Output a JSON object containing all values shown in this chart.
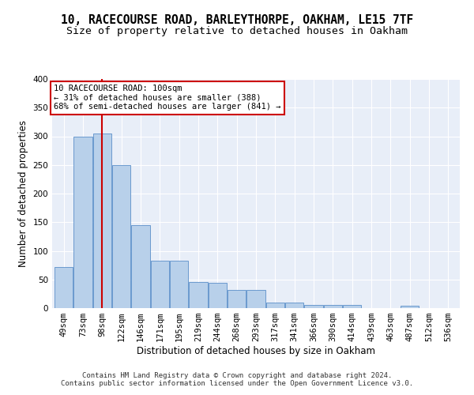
{
  "title_line1": "10, RACECOURSE ROAD, BARLEYTHORPE, OAKHAM, LE15 7TF",
  "title_line2": "Size of property relative to detached houses in Oakham",
  "xlabel": "Distribution of detached houses by size in Oakham",
  "ylabel": "Number of detached properties",
  "categories": [
    "49sqm",
    "73sqm",
    "98sqm",
    "122sqm",
    "146sqm",
    "171sqm",
    "195sqm",
    "219sqm",
    "244sqm",
    "268sqm",
    "293sqm",
    "317sqm",
    "341sqm",
    "366sqm",
    "390sqm",
    "414sqm",
    "439sqm",
    "463sqm",
    "487sqm",
    "512sqm",
    "536sqm"
  ],
  "values": [
    72,
    300,
    305,
    249,
    145,
    83,
    83,
    45,
    44,
    32,
    32,
    9,
    9,
    6,
    6,
    6,
    0,
    0,
    4,
    0,
    0
  ],
  "bar_color": "#b8d0ea",
  "bar_edge_color": "#5b8fc9",
  "vline_x_index": 2,
  "vline_color": "#cc0000",
  "annotation_line1": "10 RACECOURSE ROAD: 100sqm",
  "annotation_line2": "← 31% of detached houses are smaller (388)",
  "annotation_line3": "68% of semi-detached houses are larger (841) →",
  "annotation_box_color": "#cc0000",
  "ylim": [
    0,
    400
  ],
  "yticks": [
    0,
    50,
    100,
    150,
    200,
    250,
    300,
    350,
    400
  ],
  "footer_line1": "Contains HM Land Registry data © Crown copyright and database right 2024.",
  "footer_line2": "Contains public sector information licensed under the Open Government Licence v3.0.",
  "background_color": "#e8eef8",
  "grid_color": "#ffffff",
  "title_fontsize": 10.5,
  "subtitle_fontsize": 9.5,
  "axis_label_fontsize": 8.5,
  "tick_fontsize": 7.5,
  "annotation_fontsize": 7.5,
  "footer_fontsize": 6.5
}
